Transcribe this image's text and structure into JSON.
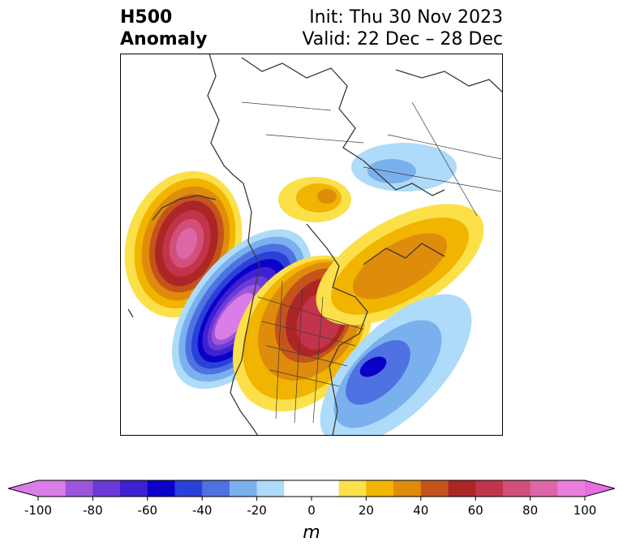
{
  "title": {
    "left_line1": "H500",
    "left_line2": "Anomaly",
    "right_line1": "Init: Thu 30 Nov 2023",
    "right_line2": "Valid: 22 Dec – 28 Dec"
  },
  "colorbar": {
    "unit": "m",
    "ticks": [
      "-100",
      "-80",
      "-60",
      "-40",
      "-20",
      "0",
      "20",
      "40",
      "60",
      "80",
      "100"
    ],
    "colors": [
      "#d97ee6",
      "#9d55db",
      "#6a3bd6",
      "#3f20d2",
      "#0a00c8",
      "#2a41d9",
      "#4f72e3",
      "#7bb0ef",
      "#aedbf9",
      "#ffffff",
      "#ffffff",
      "#fbe04a",
      "#f1b400",
      "#df8b0b",
      "#c4541b",
      "#ad2626",
      "#c2344b",
      "#d0507a",
      "#dc66a8",
      "#e97ede"
    ],
    "extend_min": "#d97ee6",
    "extend_max": "#e86be0"
  }
}
